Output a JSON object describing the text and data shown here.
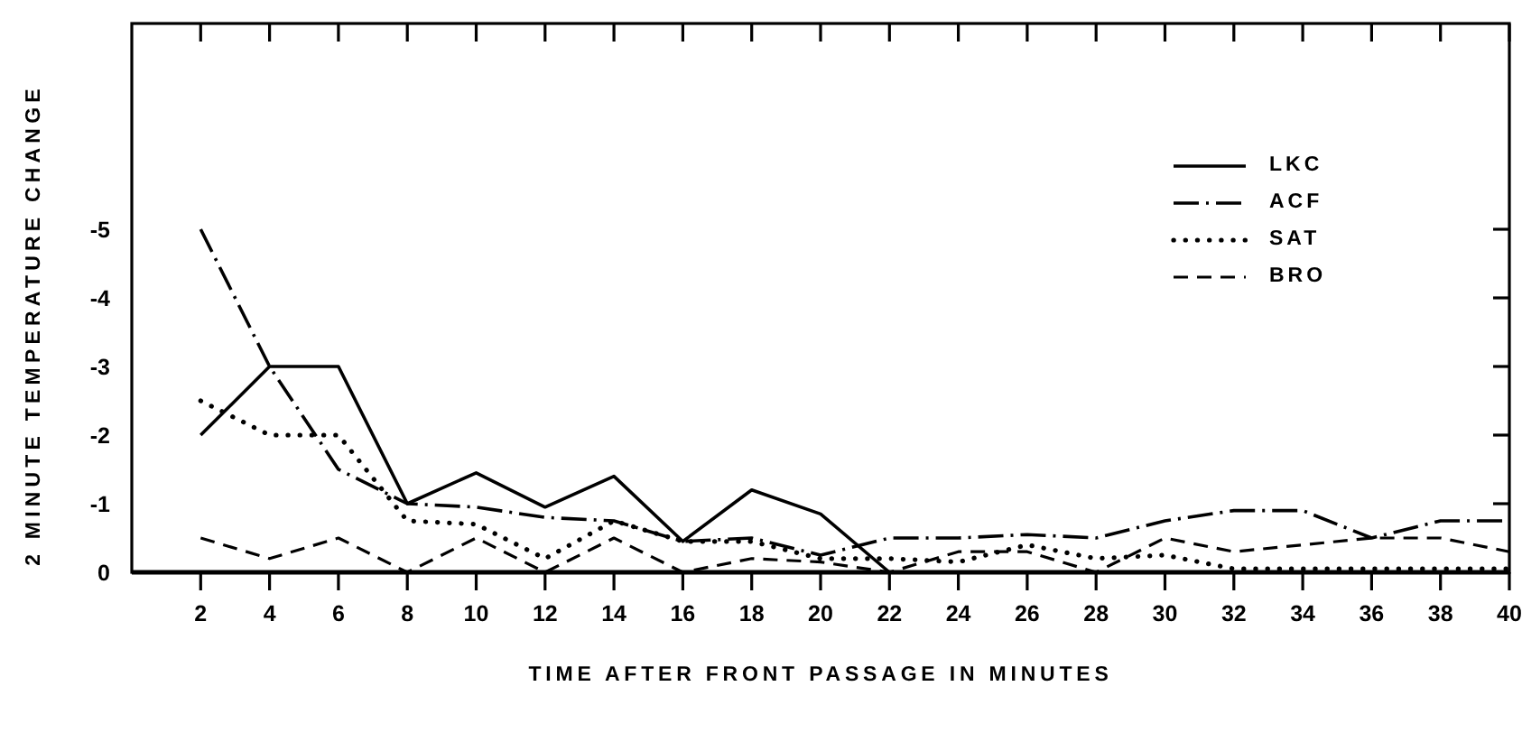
{
  "chart_data": {
    "type": "line",
    "xlabel": "TIME AFTER FRONT PASSAGE IN MINUTES",
    "ylabel": "2 MINUTE TEMPERATURE CHANGE",
    "x": [
      2,
      4,
      6,
      8,
      10,
      12,
      14,
      16,
      18,
      20,
      22,
      24,
      26,
      28,
      30,
      32,
      34,
      36,
      38,
      40
    ],
    "xlim": [
      0,
      40
    ],
    "xticks": [
      2,
      4,
      6,
      8,
      10,
      12,
      14,
      16,
      18,
      20,
      22,
      24,
      26,
      28,
      30,
      32,
      34,
      36,
      38,
      40
    ],
    "ylim": [
      0,
      -8
    ],
    "yticks": [
      0,
      -1,
      -2,
      -3,
      -4,
      -5
    ],
    "legend": "top right",
    "series": [
      {
        "name": "LKC",
        "color": "#000000",
        "line_style": "solid",
        "values": [
          -2,
          -3,
          -3,
          -1,
          -1.45,
          -0.95,
          -1.4,
          -0.45,
          -1.2,
          -0.85,
          0,
          null,
          null,
          null,
          null,
          null,
          null,
          null,
          null,
          null
        ]
      },
      {
        "name": "ACF",
        "color": "#000000",
        "line_style": "dashdot",
        "values": [
          -5,
          -3,
          -1.5,
          -1,
          -0.95,
          -0.8,
          -0.75,
          -0.45,
          -0.5,
          -0.25,
          -0.5,
          -0.5,
          -0.55,
          -0.5,
          -0.75,
          -0.9,
          -0.9,
          -0.5,
          -0.75,
          -0.75
        ]
      },
      {
        "name": "SAT",
        "color": "#000000",
        "line_style": "dotted",
        "values": [
          -2.5,
          -2,
          -2,
          -0.75,
          -0.7,
          -0.2,
          -0.75,
          -0.45,
          -0.45,
          -0.2,
          -0.2,
          -0.15,
          -0.4,
          -0.2,
          -0.25,
          -0.05,
          -0.05,
          -0.05,
          -0.05,
          -0.05
        ]
      },
      {
        "name": "BRO",
        "color": "#000000",
        "line_style": "dashed",
        "values": [
          -0.5,
          -0.2,
          -0.5,
          0,
          -0.5,
          0,
          -0.5,
          0,
          -0.2,
          -0.15,
          0,
          -0.3,
          -0.3,
          0,
          -0.5,
          -0.3,
          -0.4,
          -0.5,
          -0.5,
          -0.3
        ]
      }
    ]
  }
}
